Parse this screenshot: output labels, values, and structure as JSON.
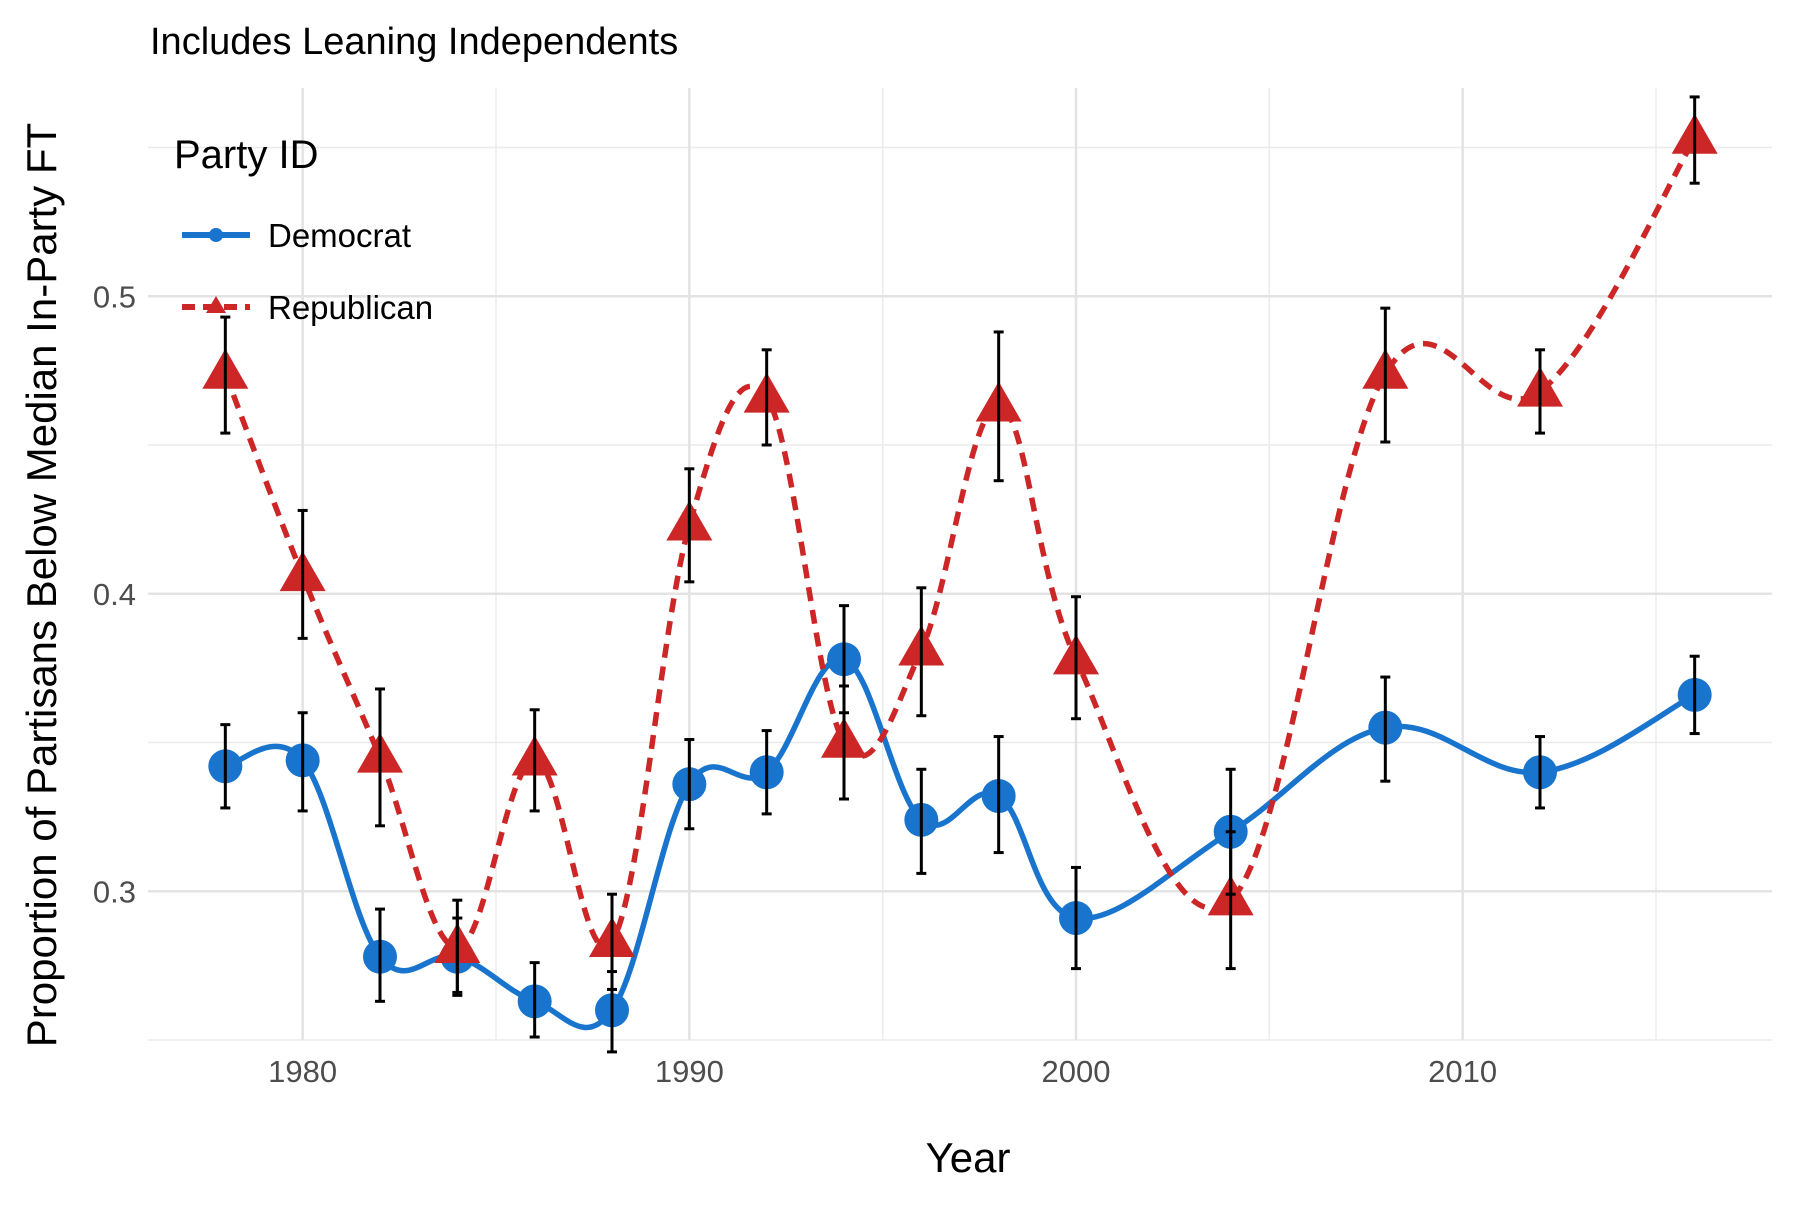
{
  "chart_data": {
    "type": "line",
    "subtitle": "Includes Leaning Independents",
    "xlabel": "Year",
    "ylabel": "Proportion of Partisans Below Median In-Party FT",
    "xlim": [
      1976,
      2018
    ],
    "ylim": [
      0.25,
      0.57
    ],
    "x_ticks": [
      1980,
      1990,
      2000,
      2010
    ],
    "y_ticks": [
      0.3,
      0.4,
      0.5
    ],
    "x_tick_labels": [
      "1980",
      "1990",
      "2000",
      "2010"
    ],
    "y_tick_labels": [
      "0.3",
      "0.4",
      "0.5"
    ],
    "grid": true,
    "legend": {
      "title": "Party ID",
      "position": "top-left"
    },
    "series": [
      {
        "name": "Democrat",
        "color": "#1874CD",
        "marker": "circle",
        "line_style": "solid",
        "points": [
          {
            "x": 1978,
            "y": 0.342,
            "lo": 0.328,
            "hi": 0.356
          },
          {
            "x": 1980,
            "y": 0.344,
            "lo": 0.327,
            "hi": 0.36
          },
          {
            "x": 1982,
            "y": 0.278,
            "lo": 0.263,
            "hi": 0.294
          },
          {
            "x": 1984,
            "y": 0.278,
            "lo": 0.265,
            "hi": 0.291
          },
          {
            "x": 1986,
            "y": 0.263,
            "lo": 0.251,
            "hi": 0.276
          },
          {
            "x": 1988,
            "y": 0.26,
            "lo": 0.246,
            "hi": 0.273
          },
          {
            "x": 1990,
            "y": 0.336,
            "lo": 0.321,
            "hi": 0.351
          },
          {
            "x": 1992,
            "y": 0.34,
            "lo": 0.326,
            "hi": 0.354
          },
          {
            "x": 1994,
            "y": 0.378,
            "lo": 0.36,
            "hi": 0.396
          },
          {
            "x": 1996,
            "y": 0.324,
            "lo": 0.306,
            "hi": 0.341
          },
          {
            "x": 1998,
            "y": 0.332,
            "lo": 0.313,
            "hi": 0.352
          },
          {
            "x": 2000,
            "y": 0.291,
            "lo": 0.274,
            "hi": 0.308
          },
          {
            "x": 2004,
            "y": 0.32,
            "lo": 0.299,
            "hi": 0.341
          },
          {
            "x": 2008,
            "y": 0.355,
            "lo": 0.337,
            "hi": 0.372
          },
          {
            "x": 2012,
            "y": 0.34,
            "lo": 0.328,
            "hi": 0.352
          },
          {
            "x": 2016,
            "y": 0.366,
            "lo": 0.353,
            "hi": 0.379
          }
        ]
      },
      {
        "name": "Republican",
        "color": "#CD2626",
        "marker": "triangle",
        "line_style": "dashed",
        "points": [
          {
            "x": 1978,
            "y": 0.474,
            "lo": 0.454,
            "hi": 0.493
          },
          {
            "x": 1980,
            "y": 0.406,
            "lo": 0.385,
            "hi": 0.428
          },
          {
            "x": 1982,
            "y": 0.345,
            "lo": 0.322,
            "hi": 0.368
          },
          {
            "x": 1984,
            "y": 0.281,
            "lo": 0.266,
            "hi": 0.297
          },
          {
            "x": 1986,
            "y": 0.344,
            "lo": 0.327,
            "hi": 0.361
          },
          {
            "x": 1988,
            "y": 0.283,
            "lo": 0.267,
            "hi": 0.299
          },
          {
            "x": 1990,
            "y": 0.423,
            "lo": 0.404,
            "hi": 0.442
          },
          {
            "x": 1992,
            "y": 0.466,
            "lo": 0.45,
            "hi": 0.482
          },
          {
            "x": 1994,
            "y": 0.35,
            "lo": 0.331,
            "hi": 0.369
          },
          {
            "x": 1996,
            "y": 0.381,
            "lo": 0.359,
            "hi": 0.402
          },
          {
            "x": 1998,
            "y": 0.463,
            "lo": 0.438,
            "hi": 0.488
          },
          {
            "x": 2000,
            "y": 0.378,
            "lo": 0.358,
            "hi": 0.399
          },
          {
            "x": 2004,
            "y": 0.297,
            "lo": 0.274,
            "hi": 0.32
          },
          {
            "x": 2008,
            "y": 0.474,
            "lo": 0.451,
            "hi": 0.496
          },
          {
            "x": 2012,
            "y": 0.468,
            "lo": 0.454,
            "hi": 0.482
          },
          {
            "x": 2016,
            "y": 0.553,
            "lo": 0.538,
            "hi": 0.567
          }
        ]
      }
    ]
  }
}
